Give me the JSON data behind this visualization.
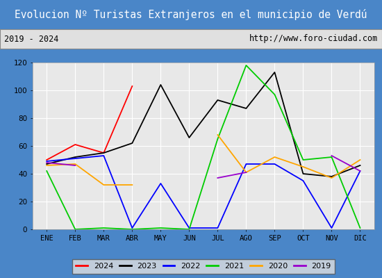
{
  "title": "Evolucion Nº Turistas Extranjeros en el municipio de Verdú",
  "subtitle_left": "2019 - 2024",
  "subtitle_right": "http://www.foro-ciudad.com",
  "months": [
    "ENE",
    "FEB",
    "MAR",
    "ABR",
    "MAY",
    "JUN",
    "JUL",
    "AGO",
    "SEP",
    "OCT",
    "NOV",
    "DIC"
  ],
  "series": {
    "2024": [
      50,
      61,
      55,
      103,
      null,
      null,
      null,
      null,
      null,
      null,
      null,
      null
    ],
    "2023": [
      47,
      52,
      55,
      62,
      104,
      66,
      93,
      87,
      113,
      40,
      38,
      46
    ],
    "2022": [
      49,
      51,
      53,
      1,
      33,
      1,
      1,
      47,
      47,
      35,
      1,
      42
    ],
    "2021": [
      42,
      0,
      1,
      0,
      1,
      0,
      65,
      118,
      97,
      50,
      52,
      1
    ],
    "2020": [
      46,
      47,
      32,
      32,
      null,
      null,
      68,
      41,
      52,
      45,
      37,
      50
    ],
    "2019": [
      48,
      46,
      null,
      null,
      null,
      null,
      37,
      41,
      null,
      null,
      53,
      42
    ]
  },
  "colors": {
    "2024": "#ff0000",
    "2023": "#000000",
    "2022": "#0000ff",
    "2021": "#00cc00",
    "2020": "#ffa500",
    "2019": "#9900cc"
  },
  "ylim": [
    0,
    120
  ],
  "yticks": [
    0,
    20,
    40,
    60,
    80,
    100,
    120
  ],
  "title_bg": "#4a86c8",
  "plot_bg": "#e8e8e8",
  "grid_color": "#ffffff",
  "fig_border": "#4a86c8",
  "fig_bg": "#4a86c8"
}
